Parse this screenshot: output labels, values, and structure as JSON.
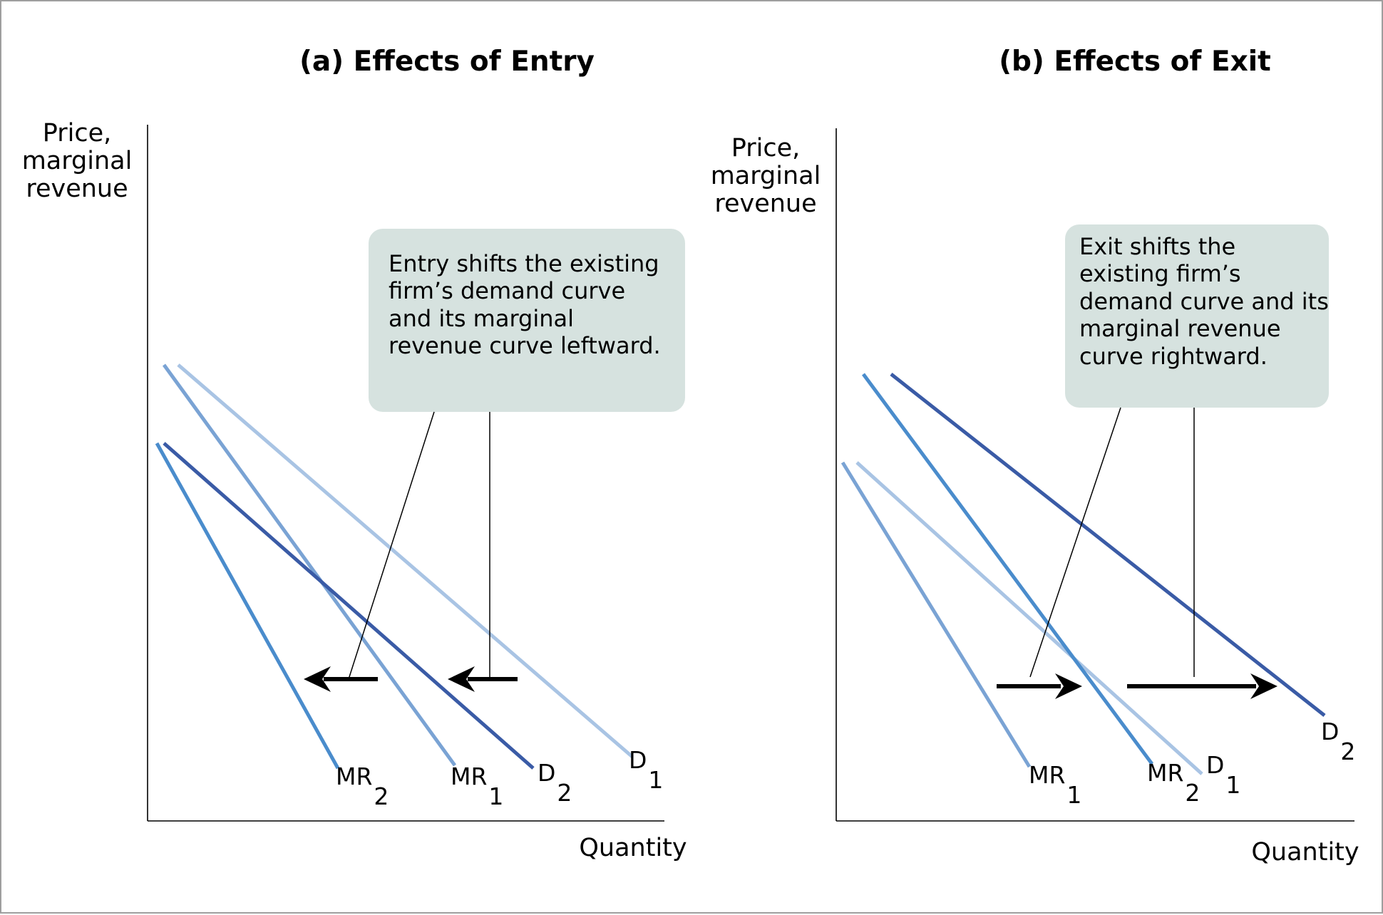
{
  "panels": [
    {
      "title": "(a) Effects of Entry",
      "y_axis_label": [
        "Price,",
        "marginal",
        "revenue"
      ],
      "x_axis_label": "Quantity",
      "callout": [
        "Entry shifts the existing",
        "firm’s demand curve",
        "and its marginal",
        "revenue curve leftward."
      ],
      "curves": [
        {
          "id": "D1",
          "main": "D",
          "sub": "1",
          "color": "#a9c4e4"
        },
        {
          "id": "MR1",
          "main": "MR",
          "sub": "1",
          "color": "#7aa3d4"
        },
        {
          "id": "D2",
          "main": "D",
          "sub": "2",
          "color": "#3a5ba6"
        },
        {
          "id": "MR2",
          "main": "MR",
          "sub": "2",
          "color": "#4a8ccc"
        }
      ],
      "arrows": [
        {
          "direction": "left"
        },
        {
          "direction": "left"
        }
      ]
    },
    {
      "title": "(b) Effects of Exit",
      "y_axis_label": [
        "Price,",
        "marginal",
        "revenue"
      ],
      "x_axis_label": "Quantity",
      "callout": [
        "Exit shifts the",
        "existing firm’s",
        "demand curve and its",
        "marginal revenue",
        "curve rightward."
      ],
      "curves": [
        {
          "id": "D1",
          "main": "D",
          "sub": "1",
          "color": "#a9c4e4"
        },
        {
          "id": "MR1",
          "main": "MR",
          "sub": "1",
          "color": "#7aa3d4"
        },
        {
          "id": "D2",
          "main": "D",
          "sub": "2",
          "color": "#3a5ba6"
        },
        {
          "id": "MR2",
          "main": "MR",
          "sub": "2",
          "color": "#4a8ccc"
        }
      ],
      "arrows": [
        {
          "direction": "right"
        },
        {
          "direction": "right"
        }
      ]
    }
  ],
  "colors": {
    "callout_fill": "#d6e2df",
    "axis": "#000000",
    "arrow": "#000000"
  }
}
